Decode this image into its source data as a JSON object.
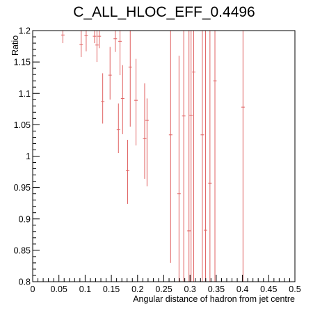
{
  "chart_data": {
    "type": "scatter",
    "title": "C_ALL_HLOC_EFF_0.4496",
    "xlabel": "Angular distance of hadron from jet centre",
    "ylabel": "Ratio",
    "xlim": [
      0,
      0.5
    ],
    "ylim": [
      0.8,
      1.2
    ],
    "x_ticks": [
      "0",
      "0.05",
      "0.1",
      "0.15",
      "0.2",
      "0.25",
      "0.3",
      "0.35",
      "0.4",
      "0.45",
      "0.5"
    ],
    "y_ticks": [
      "0.8",
      "0.85",
      "0.9",
      "0.95",
      "1",
      "1.05",
      "1.1",
      "1.15",
      "1.2"
    ],
    "grid": false,
    "marker_color": "#e06060",
    "points": [
      {
        "x": 0.0575,
        "y": 1.193,
        "err_low": 0.013,
        "err_high": 0.007
      },
      {
        "x": 0.0925,
        "y": 1.178,
        "err_low": 0.02,
        "err_high": 0.022
      },
      {
        "x": 0.102,
        "y": 1.192,
        "err_low": 0.025,
        "err_high": 0.008
      },
      {
        "x": 0.118,
        "y": 1.191,
        "err_low": 0.011,
        "err_high": 0.009
      },
      {
        "x": 0.1225,
        "y": 1.177,
        "err_low": 0.027,
        "err_high": 0.023
      },
      {
        "x": 0.127,
        "y": 1.191,
        "err_low": 0.019,
        "err_high": 0.009
      },
      {
        "x": 0.1335,
        "y": 1.087,
        "err_low": 0.035,
        "err_high": 0.045
      },
      {
        "x": 0.1475,
        "y": 1.129,
        "err_low": 0.039,
        "err_high": 0.045
      },
      {
        "x": 0.1575,
        "y": 1.187,
        "err_low": 0.021,
        "err_high": 0.013
      },
      {
        "x": 0.1635,
        "y": 1.042,
        "err_low": 0.037,
        "err_high": 0.042
      },
      {
        "x": 0.1665,
        "y": 1.183,
        "err_low": 0.054,
        "err_high": 0.017
      },
      {
        "x": 0.1715,
        "y": 1.092,
        "err_low": 0.057,
        "err_high": 0.053
      },
      {
        "x": 0.181,
        "y": 0.977,
        "err_low": 0.053,
        "err_high": 0.049
      },
      {
        "x": 0.186,
        "y": 1.142,
        "err_low": 0.095,
        "err_high": 0.058
      },
      {
        "x": 0.197,
        "y": 1.089,
        "err_low": 0.072,
        "err_high": 0.066
      },
      {
        "x": 0.2135,
        "y": 1.028,
        "err_low": 0.064,
        "err_high": 0.088
      },
      {
        "x": 0.218,
        "y": 1.057,
        "err_low": 0.105,
        "err_high": 0.035
      },
      {
        "x": 0.263,
        "y": 1.034,
        "err_low": 0.204,
        "err_high": 0.166
      },
      {
        "x": 0.279,
        "y": 0.94,
        "err_low": 0.14,
        "err_high": 0.22
      },
      {
        "x": 0.288,
        "y": 1.064,
        "err_low": 0.264,
        "err_high": 0.136
      },
      {
        "x": 0.298,
        "y": 0.881,
        "err_low": 0.081,
        "err_high": 0.319
      },
      {
        "x": 0.302,
        "y": 1.065,
        "err_low": 0.265,
        "err_high": 0.135
      },
      {
        "x": 0.307,
        "y": 1.134,
        "err_low": 0.334,
        "err_high": 0.066
      },
      {
        "x": 0.3235,
        "y": 1.034,
        "err_low": 0.234,
        "err_high": 0.166
      },
      {
        "x": 0.3295,
        "y": 0.882,
        "err_low": 0.082,
        "err_high": 0.318
      },
      {
        "x": 0.338,
        "y": 0.957,
        "err_low": 0.157,
        "err_high": 0.243
      },
      {
        "x": 0.3475,
        "y": 1.12,
        "err_low": 0.32,
        "err_high": 0.08
      },
      {
        "x": 0.401,
        "y": 1.078,
        "err_low": 0.278,
        "err_high": 0.122
      }
    ]
  }
}
